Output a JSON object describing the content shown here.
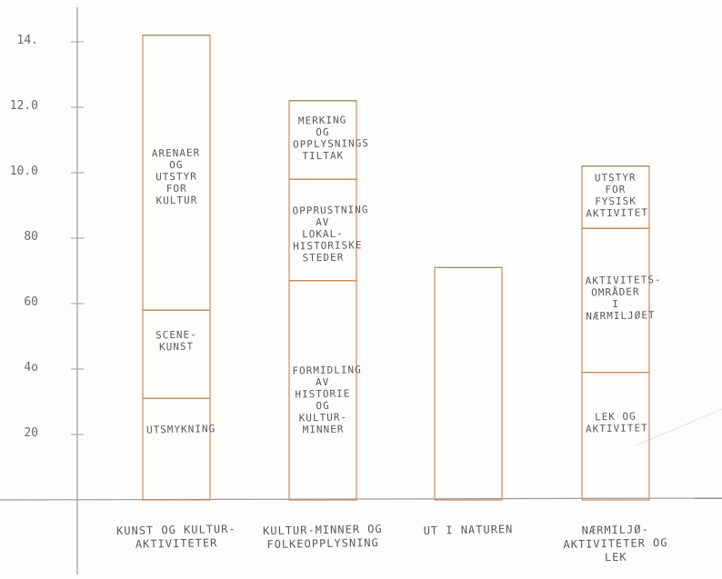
{
  "chart_data": {
    "type": "stacked_bar",
    "categories": [
      "KUNST OG KULTUR-AKTIVITETER",
      "KULTUR-MINNER OG FOLKEOPPLYSNING",
      "UT I NATUREN",
      "NÆRMILJØ-AKTIVITETER OG LEK"
    ],
    "segments": [
      [
        {
          "label": "UTSMYKNING",
          "value": 31
        },
        {
          "label": "SCENE-KUNST",
          "value": 27
        },
        {
          "label": "ARENAER OG UTSTYR FOR KULTUR",
          "value": 84
        }
      ],
      [
        {
          "label": "FORMIDLING AV HISTORIE OG KULTUR-MINNER",
          "value": 67
        },
        {
          "label": "OPPRUSTNING AV LOKAL-HISTORISKE STEDER",
          "value": 31
        },
        {
          "label": "MERKING OG OPPLYSNINGS TILTAK",
          "value": 24
        }
      ],
      [
        {
          "value": 71
        }
      ],
      [
        {
          "label": "LEK OG AKTIVITET",
          "value": 39
        },
        {
          "label": "AKTIVITETS-OMRÅDER I NÆRMILJØET",
          "value": 44
        },
        {
          "label": "UTSTYR FOR FYSISK AKTIVITET",
          "value": 19
        }
      ]
    ],
    "ylim": [
      0,
      140
    ],
    "yticks": [
      20,
      {
        "value": 40,
        "label": "4o"
      },
      60,
      80,
      {
        "value": 100,
        "label": "10.0"
      },
      {
        "value": 120,
        "label": "12.0"
      },
      {
        "value": 140,
        "label": "14."
      }
    ],
    "bar_color": "#d08a5c",
    "divider_color": "#8f9a62"
  }
}
